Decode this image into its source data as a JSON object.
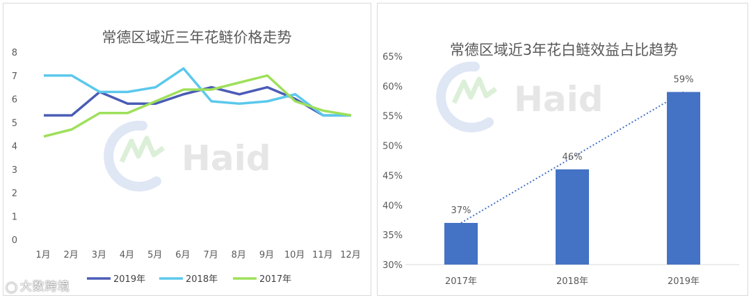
{
  "colors": {
    "s2019": "#4a5cb5",
    "s2018": "#5bc8ec",
    "s2017": "#9ee05a",
    "bar": "#4472c4",
    "trend": "#4472c4",
    "axis": "#d9d9d9",
    "watermark": "#b7c6e6"
  },
  "watermark": {
    "text": "Haid"
  },
  "source_mark": {
    "text": "大数跨境",
    "icon": "weibo-like-icon"
  },
  "chart_data": [
    {
      "type": "line",
      "title": "常德区域近三年花鲢价格走势",
      "categories": [
        "1月",
        "2月",
        "3月",
        "4月",
        "5月",
        "6月",
        "7月",
        "8月",
        "9月",
        "10月",
        "11月",
        "12月"
      ],
      "ylim": [
        0,
        8
      ],
      "yticks": [
        "0",
        "1",
        "2",
        "3",
        "4",
        "5",
        "6",
        "7",
        "8"
      ],
      "grid": false,
      "legend_position": "bottom",
      "series": [
        {
          "name": "2019年",
          "color_key": "s2019",
          "values": [
            5.3,
            5.3,
            6.3,
            5.8,
            5.8,
            6.2,
            6.5,
            6.2,
            6.5,
            6.0,
            5.3,
            5.3
          ]
        },
        {
          "name": "2018年",
          "color_key": "s2018",
          "values": [
            7.0,
            7.0,
            6.3,
            6.3,
            6.5,
            7.3,
            5.9,
            5.8,
            5.9,
            6.2,
            5.3,
            5.3
          ]
        },
        {
          "name": "2017年",
          "color_key": "s2017",
          "values": [
            4.4,
            4.7,
            5.4,
            5.4,
            5.9,
            6.4,
            6.4,
            6.7,
            7.0,
            5.9,
            5.5,
            5.3
          ]
        }
      ]
    },
    {
      "type": "bar",
      "title": "常德区域近3年花白鲢效益占比趋势",
      "categories": [
        "2017年",
        "2018年",
        "2019年"
      ],
      "values": [
        37,
        46,
        59
      ],
      "data_labels": [
        "37%",
        "46%",
        "59%"
      ],
      "ylim": [
        30,
        65
      ],
      "yticks": [
        "30%",
        "35%",
        "40%",
        "45%",
        "50%",
        "55%",
        "60%",
        "65%"
      ],
      "trendline": "linear-dotted",
      "grid": false
    }
  ]
}
